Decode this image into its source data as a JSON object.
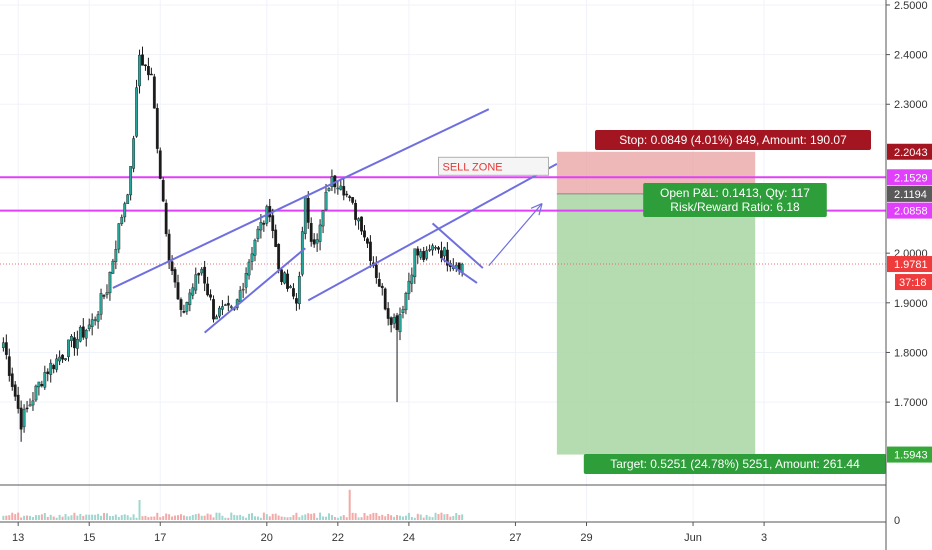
{
  "chart_data": {
    "type": "candlestick",
    "price_axis": {
      "ticks": [
        {
          "v": 2.5,
          "t": "2.5000"
        },
        {
          "v": 2.4,
          "t": "2.4000"
        },
        {
          "v": 2.3,
          "t": "2.3000"
        },
        {
          "v": 2.0,
          "t": "2.0000"
        },
        {
          "v": 1.9,
          "t": "1.9000"
        },
        {
          "v": 1.8,
          "t": "1.8000"
        },
        {
          "v": 1.7,
          "t": "1.7000"
        }
      ],
      "ylim": [
        1.535,
        2.51
      ],
      "badges": [
        {
          "v": 2.2043,
          "t": "2.2043",
          "color": "#a31621"
        },
        {
          "v": 2.1529,
          "t": "2.1529",
          "color": "#e040fb"
        },
        {
          "v": 2.1194,
          "t": "2.1194",
          "color": "#5a5a5a"
        },
        {
          "v": 2.0858,
          "t": "2.0858",
          "color": "#e040fb"
        },
        {
          "v": 1.9781,
          "t": "1.9781",
          "color": "#ef3b3b"
        },
        {
          "v": 1.5943,
          "t": "1.5943",
          "color": "#36a83a"
        }
      ],
      "countdown": "37:18"
    },
    "volume_axis": {
      "label": "0"
    },
    "time_axis": {
      "labels": [
        {
          "t": "13",
          "i": 5
        },
        {
          "t": "15",
          "i": 29
        },
        {
          "t": "17",
          "i": 53
        },
        {
          "t": "20",
          "i": 89
        },
        {
          "t": "22",
          "i": 113
        },
        {
          "t": "24",
          "i": 137
        },
        {
          "t": "27",
          "i": 173
        },
        {
          "t": "29",
          "i": 197
        },
        {
          "t": "Jun",
          "i": 233
        },
        {
          "t": "3",
          "i": 257
        }
      ]
    },
    "candles": [],
    "key_points": [
      {
        "i": 0,
        "p": 1.82
      },
      {
        "i": 6,
        "p": 1.66
      },
      {
        "i": 14,
        "p": 1.76
      },
      {
        "i": 30,
        "p": 1.86
      },
      {
        "i": 35,
        "p": 1.93
      },
      {
        "i": 39,
        "p": 2.05
      },
      {
        "i": 43,
        "p": 2.16
      },
      {
        "i": 46,
        "p": 2.4
      },
      {
        "i": 50,
        "p": 2.35
      },
      {
        "i": 53,
        "p": 2.16
      },
      {
        "i": 56,
        "p": 2.0
      },
      {
        "i": 60,
        "p": 1.87
      },
      {
        "i": 63,
        "p": 1.92
      },
      {
        "i": 67,
        "p": 1.97
      },
      {
        "i": 71,
        "p": 1.88
      },
      {
        "i": 78,
        "p": 1.88
      },
      {
        "i": 85,
        "p": 2.03
      },
      {
        "i": 90,
        "p": 2.09
      },
      {
        "i": 93,
        "p": 1.97
      },
      {
        "i": 96,
        "p": 1.93
      },
      {
        "i": 99,
        "p": 1.9
      },
      {
        "i": 102,
        "p": 2.1
      },
      {
        "i": 104,
        "p": 2.04
      },
      {
        "i": 106,
        "p": 2.02
      },
      {
        "i": 110,
        "p": 2.14
      },
      {
        "i": 114,
        "p": 2.15
      },
      {
        "i": 117,
        "p": 2.1
      },
      {
        "i": 121,
        "p": 2.06
      },
      {
        "i": 126,
        "p": 1.96
      },
      {
        "i": 130,
        "p": 1.88
      },
      {
        "i": 133,
        "p": 1.86
      },
      {
        "i": 136,
        "p": 1.92
      },
      {
        "i": 139,
        "p": 2.0
      },
      {
        "i": 143,
        "p": 1.99
      },
      {
        "i": 146,
        "p": 2.02
      },
      {
        "i": 150,
        "p": 1.99
      },
      {
        "i": 155,
        "p": 1.978
      }
    ],
    "horizontal_lines": [
      {
        "p": 2.1529,
        "color": "#e040fb"
      },
      {
        "p": 2.0858,
        "color": "#e040fb"
      },
      {
        "p": 1.9781,
        "color": "#ef6b6b",
        "dashed": true
      }
    ],
    "trendlines": [
      {
        "i1": 37,
        "p1": 1.93,
        "i2": 164,
        "p2": 2.29
      },
      {
        "i1": 68,
        "p1": 1.84,
        "i2": 102,
        "p2": 2.01
      },
      {
        "i1": 103,
        "p1": 1.905,
        "i2": 187,
        "p2": 2.18
      },
      {
        "i1": 145,
        "p1": 2.06,
        "i2": 162,
        "p2": 1.97
      },
      {
        "i1": 148,
        "p1": 1.99,
        "i2": 160,
        "p2": 1.94
      }
    ],
    "arrow": {
      "i1": 164,
      "p1": 1.975,
      "i2": 182,
      "p2": 2.1
    },
    "annotation": {
      "text": "SELL ZONE",
      "i": 147,
      "p": 2.175
    },
    "position": {
      "i_start": 187,
      "i_end": 254,
      "entry": 2.1194,
      "stop": 2.2043,
      "target": 1.5943,
      "stop_label": "Stop: 0.0849 (4.01%) 849, Amount: 190.07",
      "pnl_label": "Open P&L: 0.1413, Qty: 117",
      "rr_label": "Risk/Reward Ratio: 6.18",
      "target_label": "Target: 0.5251 (24.78%) 5251, Amount: 261.44"
    },
    "colors": {
      "up": "#26a69a",
      "down": "#ef5350",
      "candle": "#1a1a1a",
      "channel": "#6f6fe0"
    }
  }
}
